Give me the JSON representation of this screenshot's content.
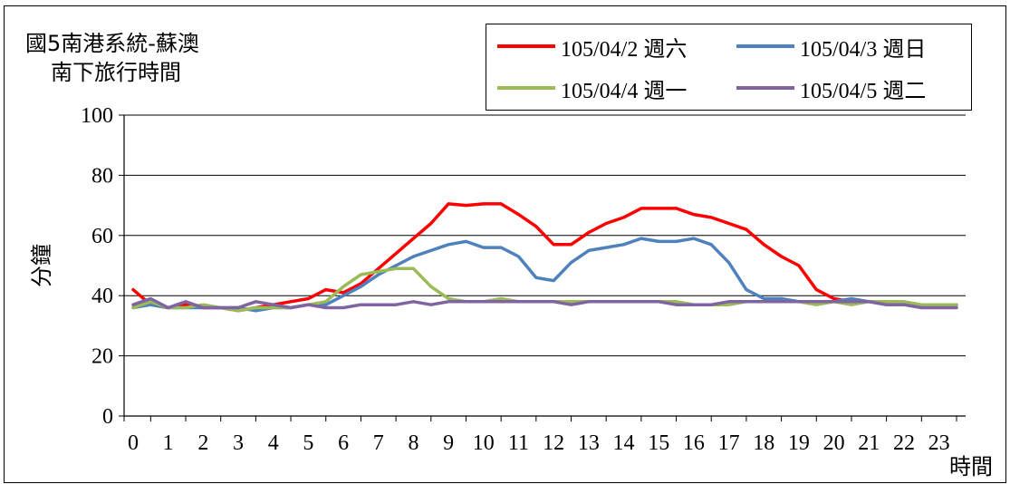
{
  "chart_data": {
    "type": "line",
    "title": [
      "國5南港系統-蘇澳",
      "南下旅行時間"
    ],
    "ylabel": "分鐘",
    "xlabel": "時間",
    "ylim": [
      0,
      100
    ],
    "yticks": [
      0,
      20,
      40,
      60,
      80,
      100
    ],
    "x_tick_labels": [
      "0",
      "1",
      "2",
      "3",
      "4",
      "5",
      "6",
      "7",
      "8",
      "9",
      "10",
      "11",
      "12",
      "13",
      "14",
      "15",
      "16",
      "17",
      "18",
      "19",
      "20",
      "21",
      "22",
      "23"
    ],
    "x": [
      0,
      0.5,
      1,
      1.5,
      2,
      2.5,
      3,
      3.5,
      4,
      4.5,
      5,
      5.5,
      6,
      6.5,
      7,
      7.5,
      8,
      8.5,
      9,
      9.5,
      10,
      10.5,
      11,
      11.5,
      12,
      12.5,
      13,
      13.5,
      14,
      14.5,
      15,
      15.5,
      16,
      16.5,
      17,
      17.5,
      18,
      18.5,
      19,
      19.5,
      20,
      20.5,
      21,
      21.5,
      22,
      22.5,
      23,
      23.5
    ],
    "grid": true,
    "legend_position": "top-right",
    "series": [
      {
        "name": "105/04/2 週六",
        "color": "#ff0000",
        "values": [
          42,
          37,
          36,
          37,
          36,
          36,
          35,
          36,
          37,
          38,
          39,
          42,
          41,
          44,
          49,
          54,
          59,
          64,
          70.5,
          70,
          70.5,
          70.5,
          67,
          63,
          57,
          57,
          61,
          64,
          66,
          69,
          69,
          69,
          67,
          66,
          64,
          62,
          57,
          53,
          50,
          42,
          39,
          38,
          38,
          38,
          37,
          37,
          37,
          37
        ]
      },
      {
        "name": "105/04/3 週日",
        "color": "#4f81bd",
        "values": [
          36,
          37,
          36,
          36,
          36,
          36,
          36,
          35,
          36,
          36,
          37,
          37,
          40,
          43,
          47,
          50,
          53,
          55,
          57,
          58,
          56,
          56,
          53,
          46,
          45,
          51,
          55,
          56,
          57,
          59,
          58,
          58,
          59,
          57,
          51,
          42,
          39,
          39,
          38,
          38,
          38,
          39,
          38,
          37,
          37,
          37,
          37,
          37
        ]
      },
      {
        "name": "105/04/4 週一",
        "color": "#9bbb59",
        "values": [
          36,
          38,
          36,
          36,
          37,
          36,
          35,
          36,
          36,
          36,
          37,
          38,
          43,
          47,
          48,
          49,
          49,
          43,
          39,
          38,
          38,
          39,
          38,
          38,
          38,
          38,
          38,
          38,
          38,
          38,
          38,
          38,
          37,
          37,
          37,
          38,
          38,
          38,
          38,
          37,
          38,
          37,
          38,
          38,
          38,
          37,
          37,
          37
        ]
      },
      {
        "name": "105/04/5 週二",
        "color": "#8064a2",
        "values": [
          37,
          39,
          36,
          38,
          36,
          36,
          36,
          38,
          37,
          36,
          37,
          36,
          36,
          37,
          37,
          37,
          38,
          37,
          38,
          38,
          38,
          38,
          38,
          38,
          38,
          37,
          38,
          38,
          38,
          38,
          38,
          37,
          37,
          37,
          38,
          38,
          38,
          38,
          38,
          38,
          38,
          38,
          38,
          37,
          37,
          36,
          36,
          36
        ]
      }
    ]
  }
}
